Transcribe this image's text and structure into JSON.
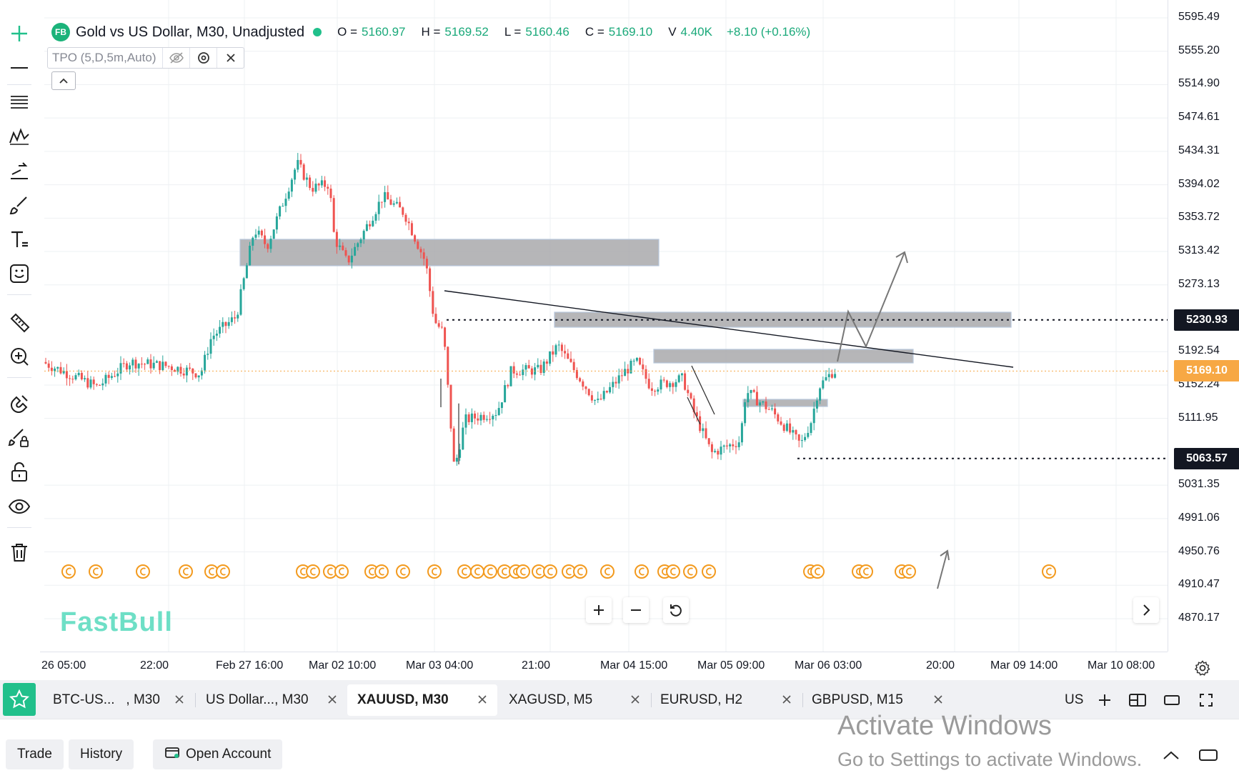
{
  "legend": {
    "logo": "FB",
    "title": "Gold vs US Dollar, M30, Unadjusted",
    "o_label": "O =",
    "o": "5160.97",
    "h_label": "H =",
    "h": "5169.52",
    "l_label": "L =",
    "l": "5160.46",
    "c_label": "C =",
    "c": "5169.10",
    "v_label": "V",
    "v": "4.40K",
    "change": "+8.10 (+0.16%)",
    "up_color": "#1aa97a"
  },
  "indicator": {
    "name": "TPO (5,D,5m,Auto)"
  },
  "watermark": "FastBull",
  "toolbar": {
    "tools": [
      "crosshair-icon",
      "horizontal-line-icon",
      "fib-lines-icon",
      "pattern-icon",
      "forecast-icon",
      "brush-icon",
      "text-icon",
      "emoji-icon",
      "ruler-icon",
      "zoom-in-icon",
      "magnet-icon",
      "lock-drawing-icon",
      "unlock-icon",
      "eye-icon",
      "trash-icon"
    ]
  },
  "price_axis": {
    "labels": [
      "5595.49",
      "5555.20",
      "5514.90",
      "5474.61",
      "5434.31",
      "5394.02",
      "5353.72",
      "5313.42",
      "5273.13",
      "5192.54",
      "5152.24",
      "5111.95",
      "5031.35",
      "4991.06",
      "4950.76",
      "4910.47",
      "4870.17"
    ],
    "tags": [
      {
        "value": "5230.93",
        "bg": "#131722"
      },
      {
        "value": "5169.10",
        "bg": "#f7a844"
      },
      {
        "value": "5063.57",
        "bg": "#131722"
      }
    ]
  },
  "time_axis": {
    "labels": [
      "26 05:00",
      "22:00",
      "Feb 27 16:00",
      "Mar 02 10:00",
      "Mar 03 04:00",
      "21:00",
      "Mar 04 15:00",
      "Mar 05 09:00",
      "Mar 06 03:00",
      "20:00",
      "Mar 09 14:00",
      "Mar 10 08:00"
    ]
  },
  "chart_data": {
    "type": "candlestick",
    "symbol": "XAUUSD",
    "timeframe": "M30",
    "ylim": [
      4850,
      5615
    ],
    "last_price": 5169.1,
    "levels": [
      5230.93,
      5063.57
    ],
    "up_color": "#26a69a",
    "down_color": "#ef5350"
  },
  "tabs": [
    {
      "label": "BTC-US...   , M30"
    },
    {
      "label": "US Dollar..., M30"
    },
    {
      "label": "XAUUSD, M30"
    },
    {
      "label": "XAGUSD, M5"
    },
    {
      "label": "EURUSD, H2"
    },
    {
      "label": "GBPUSD, M15"
    }
  ],
  "tab_more": "US",
  "bottom": {
    "trade": "Trade",
    "history": "History",
    "open_account": "Open Account"
  },
  "activate": {
    "line1": "Activate Windows",
    "line2": "Go to Settings to activate Windows."
  }
}
